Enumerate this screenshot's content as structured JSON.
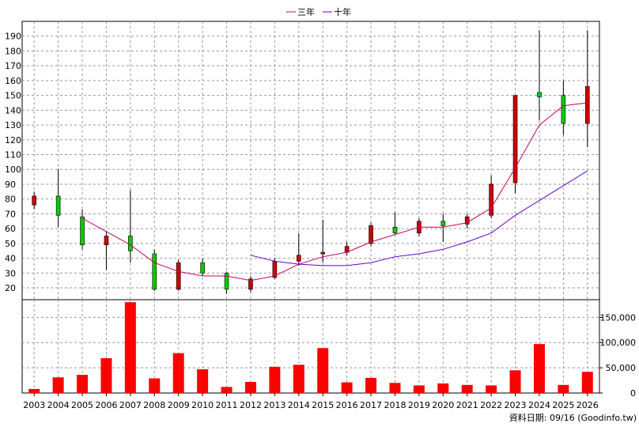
{
  "legend": {
    "items": [
      {
        "label": "三年",
        "color": "#cc0066"
      },
      {
        "label": "十年",
        "color": "#6600cc"
      }
    ]
  },
  "footer": {
    "source_note": "資料日期: 09/16 (Goodinfo.tw)"
  },
  "colors": {
    "up": "#cc0000",
    "down": "#00cc00",
    "volume": "#ff0000",
    "ma3": "#cc0066",
    "ma10": "#6600cc",
    "grid": "#999999"
  },
  "chart_data": [
    {
      "type": "candlestick",
      "title": "",
      "categories": [
        "2003",
        "2004",
        "2005",
        "2006",
        "2007",
        "2008",
        "2009",
        "2010",
        "2011",
        "2012",
        "2013",
        "2014",
        "2015",
        "2016",
        "2017",
        "2018",
        "2019",
        "2020",
        "2021",
        "2022",
        "2023",
        "2024",
        "2025",
        "2026"
      ],
      "ylim": [
        12,
        200
      ],
      "y_ticks": [
        20,
        30,
        40,
        50,
        60,
        70,
        80,
        90,
        100,
        110,
        120,
        130,
        140,
        150,
        160,
        170,
        180,
        190
      ],
      "grid": true,
      "legend_position": "top-center",
      "candles": [
        {
          "open": 76,
          "close": 82,
          "high": 85,
          "low": 73
        },
        {
          "open": 82,
          "close": 69,
          "high": 100,
          "low": 61
        },
        {
          "open": 68,
          "close": 49,
          "high": 73,
          "low": 46
        },
        {
          "open": 49,
          "close": 55,
          "high": 58,
          "low": 32
        },
        {
          "open": 55,
          "close": 45,
          "high": 86,
          "low": 37
        },
        {
          "open": 43,
          "close": 19,
          "high": 46,
          "low": 18
        },
        {
          "open": 19,
          "close": 37,
          "high": 39,
          "low": 18
        },
        {
          "open": 37,
          "close": 30,
          "high": 40,
          "low": 28
        },
        {
          "open": 30,
          "close": 19,
          "high": 31,
          "low": 16
        },
        {
          "open": 19,
          "close": 26,
          "high": 28,
          "low": 17
        },
        {
          "open": 27,
          "close": 38,
          "high": 40,
          "low": 26
        },
        {
          "open": 38,
          "close": 42,
          "high": 57,
          "low": 35
        },
        {
          "open": 43,
          "close": 44,
          "high": 66,
          "low": 37
        },
        {
          "open": 44,
          "close": 48,
          "high": 51,
          "low": 42
        },
        {
          "open": 50,
          "close": 62,
          "high": 64,
          "low": 48
        },
        {
          "open": 61,
          "close": 57,
          "high": 71,
          "low": 56
        },
        {
          "open": 57,
          "close": 65,
          "high": 67,
          "low": 55
        },
        {
          "open": 65,
          "close": 62,
          "high": 70,
          "low": 51
        },
        {
          "open": 63,
          "close": 68,
          "high": 70,
          "low": 60
        },
        {
          "open": 69,
          "close": 90,
          "high": 96,
          "low": 67
        },
        {
          "open": 91,
          "close": 150,
          "high": 150,
          "low": 84
        },
        {
          "open": 152,
          "close": 149,
          "high": 194,
          "low": 133
        },
        {
          "open": 150,
          "close": 131,
          "high": 160,
          "low": 123
        },
        {
          "open": 131,
          "close": 156,
          "high": 194,
          "low": 115
        }
      ],
      "series": [
        {
          "name": "三年",
          "values": [
            null,
            null,
            67,
            58,
            49,
            37,
            31,
            28,
            28,
            25,
            28,
            36,
            41,
            44,
            51,
            56,
            61,
            61,
            64,
            74,
            101,
            130,
            143,
            145
          ]
        },
        {
          "name": "十年",
          "values": [
            null,
            null,
            null,
            null,
            null,
            null,
            null,
            null,
            null,
            42,
            38,
            36,
            35,
            35,
            37,
            41,
            43,
            46,
            51,
            57,
            69,
            79,
            89,
            99
          ]
        }
      ]
    },
    {
      "type": "bar",
      "title": "",
      "categories": [
        "2003",
        "2004",
        "2005",
        "2006",
        "2007",
        "2008",
        "2009",
        "2010",
        "2011",
        "2012",
        "2013",
        "2014",
        "2015",
        "2016",
        "2017",
        "2018",
        "2019",
        "2020",
        "2021",
        "2022",
        "2023",
        "2024",
        "2025",
        "2026"
      ],
      "ylim": [
        0,
        185000
      ],
      "y_ticks": [
        0,
        50000,
        100000,
        150000
      ],
      "y_tick_labels": [
        "0",
        "50,000",
        "100,000",
        "150,000"
      ],
      "values": [
        8000,
        31000,
        36000,
        69000,
        180000,
        29000,
        79000,
        47000,
        12000,
        22000,
        52000,
        56000,
        89000,
        21000,
        30000,
        20000,
        15000,
        19000,
        16000,
        15000,
        45000,
        97000,
        16000,
        42000
      ]
    }
  ]
}
